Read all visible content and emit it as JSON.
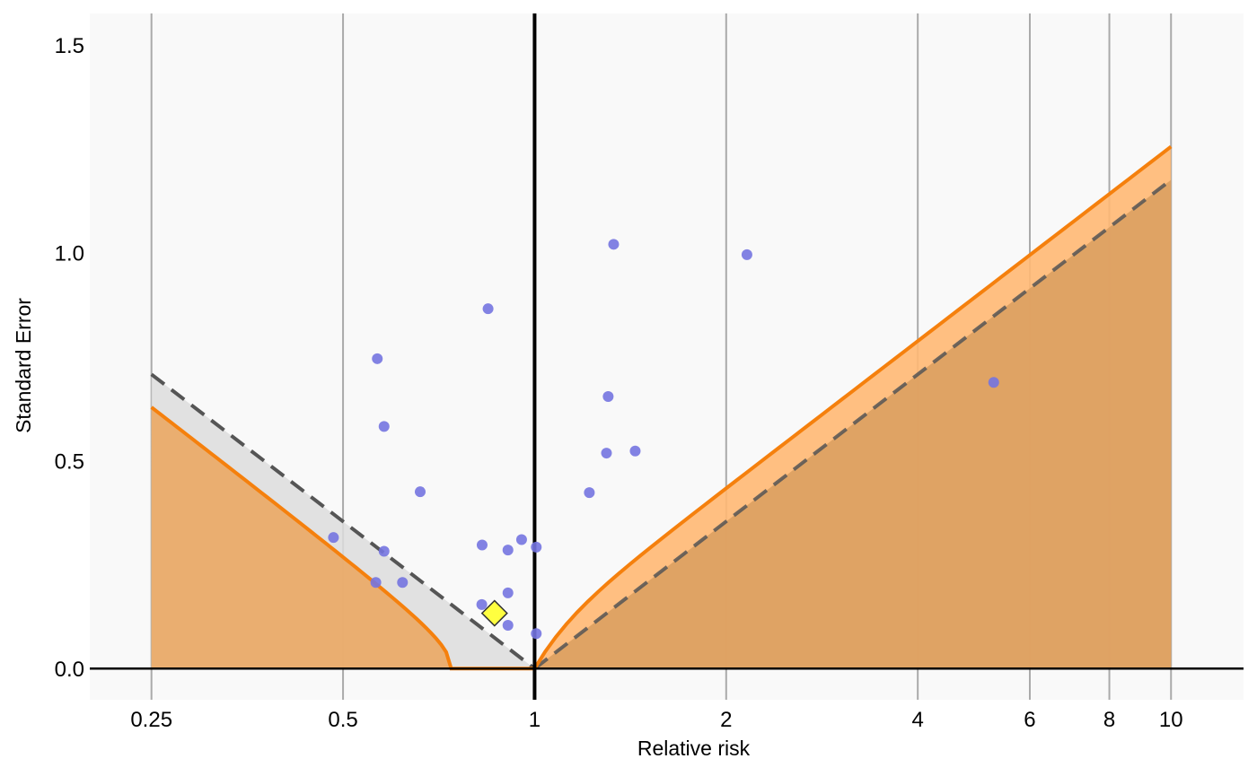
{
  "chart_data": {
    "type": "scatter",
    "xlabel": "Relative risk",
    "ylabel": "Standard Error",
    "x_scale": "log",
    "xlim": [
      0.2,
      13
    ],
    "ylim": [
      -0.075,
      1.575
    ],
    "x_ticks": [
      0.25,
      0.5,
      1,
      2,
      4,
      6,
      8,
      10
    ],
    "x_tick_labels": [
      "0.25",
      "0.5",
      "1",
      "2",
      "4",
      "6",
      "8",
      "10"
    ],
    "y_ticks": [
      0,
      0.5,
      1,
      1.5
    ],
    "y_tick_labels": [
      "0.0",
      "0.5",
      "1.0",
      "1.5"
    ],
    "grid": "vertical lines at x ticks",
    "reference_line_x": 1,
    "studies": [
      {
        "rr": 0.483,
        "se": 0.315
      },
      {
        "rr": 0.566,
        "se": 0.745
      },
      {
        "rr": 0.58,
        "se": 0.582
      },
      {
        "rr": 0.58,
        "se": 0.282
      },
      {
        "rr": 0.563,
        "se": 0.207
      },
      {
        "rr": 0.62,
        "se": 0.207
      },
      {
        "rr": 0.661,
        "se": 0.425
      },
      {
        "rr": 0.827,
        "se": 0.297
      },
      {
        "rr": 0.826,
        "se": 0.154
      },
      {
        "rr": 0.845,
        "se": 0.865
      },
      {
        "rr": 0.908,
        "se": 0.285
      },
      {
        "rr": 0.908,
        "se": 0.182
      },
      {
        "rr": 0.908,
        "se": 0.104
      },
      {
        "rr": 0.954,
        "se": 0.31
      },
      {
        "rr": 1.006,
        "se": 0.292
      },
      {
        "rr": 1.006,
        "se": 0.084
      },
      {
        "rr": 1.219,
        "se": 0.423
      },
      {
        "rr": 1.297,
        "se": 0.518
      },
      {
        "rr": 1.305,
        "se": 0.654
      },
      {
        "rr": 1.331,
        "se": 1.02
      },
      {
        "rr": 1.439,
        "se": 0.523
      },
      {
        "rr": 2.156,
        "se": 0.995
      },
      {
        "rr": 5.265,
        "se": 0.688
      }
    ],
    "pooled_estimate": {
      "rr": 0.865,
      "se": 0.133
    },
    "bands": [
      {
        "style": "dashed line with grey shaded region (reference RR = 1)",
        "intercept": 1.0,
        "slope_factor": 1.96,
        "color": "#555555",
        "fill": "#dddddd"
      },
      {
        "style": "orange line with orange shaded region (pooled estimate)",
        "intercept": 0.865,
        "slope_factor": 1.96,
        "offset": 0.08,
        "color": "#f5800d",
        "fill": "#ffb873"
      }
    ],
    "colors": {
      "panel": "#f9f9f9",
      "grid": "#aaaaaa",
      "points": "#7474e0",
      "diamond": "#ffff40",
      "orange": "#f5800d",
      "orange_fill": "#ffb873",
      "grey_fill": "#dddddd",
      "dashed": "#555555"
    }
  }
}
